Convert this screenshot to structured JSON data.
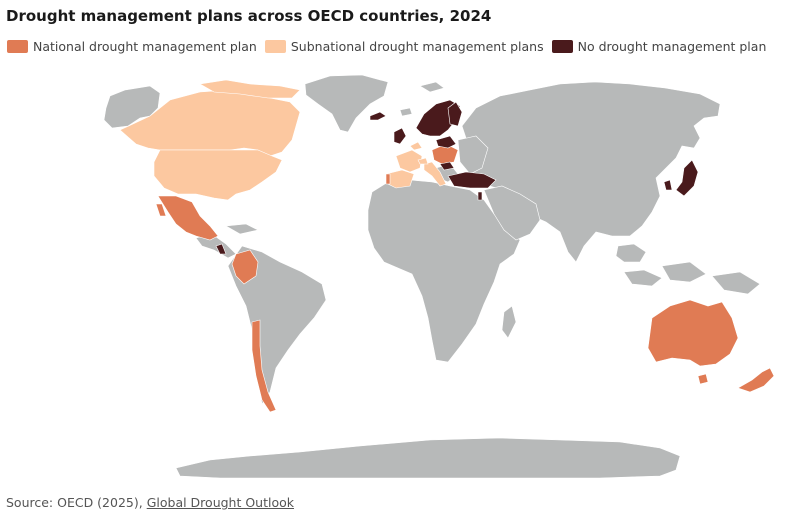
{
  "title": "Drought management plans across OECD countries, 2024",
  "legend": [
    {
      "key": "national",
      "label": "National drought management plan",
      "color": "#e07b54"
    },
    {
      "key": "subnational",
      "label": "Subnational drought management plans",
      "color": "#fcc8a0"
    },
    {
      "key": "none",
      "label": "No drought management plan",
      "color": "#4a1a1c"
    }
  ],
  "colors": {
    "non_oecd": "#b7b9b9",
    "national": "#e07b54",
    "subnational": "#fcc8a0",
    "none": "#4a1a1c",
    "border": "#ffffff"
  },
  "source": {
    "prefix": "Source: OECD (2025), ",
    "link_text": "Global Drought Outlook"
  }
}
